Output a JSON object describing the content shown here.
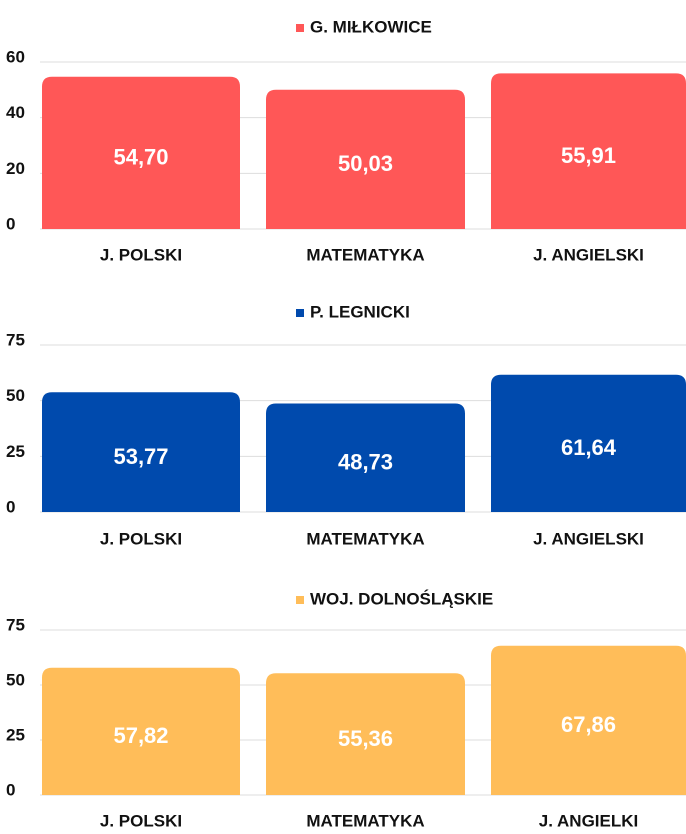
{
  "chart_data": [
    {
      "type": "bar",
      "series": [
        {
          "name": "G. MIŁKOWICE",
          "color": "#ff5757",
          "values": [
            54.7,
            50.03,
            55.91
          ],
          "value_labels": [
            "54,70",
            "50,03",
            "55,91"
          ]
        }
      ],
      "categories": [
        "J. POLSKI",
        "MATEMATYKA",
        "J. ANGIELSKI"
      ],
      "ylim": [
        0,
        60
      ],
      "yticks": [
        0,
        20,
        40,
        60
      ],
      "grid": true
    },
    {
      "type": "bar",
      "series": [
        {
          "name": "P. LEGNICKI",
          "color": "#004aad",
          "values": [
            53.77,
            48.73,
            61.64
          ],
          "value_labels": [
            "53,77",
            "48,73",
            "61,64"
          ]
        }
      ],
      "categories": [
        "J. POLSKI",
        "MATEMATYKA",
        "J. ANGIELSKI"
      ],
      "ylim": [
        0,
        75
      ],
      "yticks": [
        0,
        25,
        50,
        75
      ],
      "grid": true
    },
    {
      "type": "bar",
      "series": [
        {
          "name": "WOJ. DOLNOŚLĄSKIE",
          "color": "#ffbd59",
          "values": [
            57.82,
            55.36,
            67.86
          ],
          "value_labels": [
            "57,82",
            "55,36",
            "67,86"
          ]
        }
      ],
      "categories": [
        "J. POLSKI",
        "MATEMATYKA",
        "J. ANGIELKI"
      ],
      "ylim": [
        0,
        75
      ],
      "yticks": [
        0,
        25,
        50,
        75
      ],
      "grid": true
    }
  ]
}
